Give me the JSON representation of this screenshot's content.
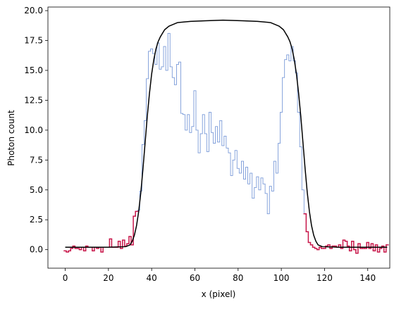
{
  "chart_data": {
    "type": "step",
    "xlabel": "x (pixel)",
    "ylabel": "Photon count",
    "xlim": [
      -8,
      150.2
    ],
    "ylim": [
      -1.55,
      20.3
    ],
    "xticks": [
      0,
      20,
      40,
      60,
      80,
      100,
      120,
      140
    ],
    "yticks": [
      {
        "value": 0,
        "label": "0.0"
      },
      2.5,
      {
        "value": 5,
        "label": "5.0"
      },
      7.5,
      {
        "value": 10,
        "label": "10.0"
      },
      12.5,
      {
        "value": 15,
        "label": "15.0"
      },
      17.5,
      {
        "value": 20,
        "label": "20.0"
      }
    ],
    "grid": false,
    "series": [
      {
        "kind": "step",
        "color": "#6b8fd4",
        "width": 0.8,
        "x": [
          31,
          32,
          33,
          34,
          35,
          36,
          37,
          38,
          39,
          40,
          41,
          42,
          43,
          44,
          45,
          46,
          47,
          48,
          49,
          50,
          51,
          52,
          53,
          54,
          55,
          56,
          57,
          58,
          59,
          60,
          61,
          62,
          63,
          64,
          65,
          66,
          67,
          68,
          69,
          70,
          71,
          72,
          73,
          74,
          75,
          76,
          77,
          78,
          79,
          80,
          81,
          82,
          83,
          84,
          85,
          86,
          87,
          88,
          89,
          90,
          91,
          92,
          93,
          94,
          95,
          96,
          97,
          98,
          99,
          100,
          101,
          102,
          103,
          104,
          105,
          106,
          107,
          108,
          109,
          110,
          111,
          112
        ],
        "values": [
          0.4,
          2.8,
          3.2,
          3.3,
          4.9,
          8.8,
          10.8,
          14.3,
          16.6,
          16.8,
          16.4,
          15.5,
          17.3,
          15.1,
          15.3,
          17.0,
          15.0,
          18.1,
          15.3,
          14.4,
          13.8,
          15.5,
          15.7,
          11.4,
          11.3,
          10.0,
          11.3,
          9.8,
          10.3,
          13.3,
          10.0,
          8.1,
          9.7,
          11.3,
          9.7,
          8.2,
          11.5,
          9.8,
          8.9,
          10.3,
          9.0,
          10.8,
          8.7,
          9.5,
          8.5,
          8.1,
          6.2,
          7.5,
          8.3,
          6.8,
          6.4,
          7.4,
          5.9,
          6.9,
          5.5,
          6.4,
          4.3,
          5.2,
          6.1,
          5.0,
          6.0,
          5.5,
          4.7,
          3.0,
          5.3,
          4.9,
          7.4,
          6.4,
          8.9,
          11.5,
          14.4,
          15.9,
          16.3,
          15.8,
          17.0,
          15.8,
          14.8,
          11.5,
          8.6,
          5.0,
          3.0,
          1.5
        ]
      },
      {
        "kind": "step",
        "color": "#c8174a",
        "width": 1.5,
        "x": [
          0,
          1,
          2,
          3,
          4,
          5,
          6,
          7,
          8,
          9,
          10,
          11,
          12,
          13,
          14,
          15,
          16,
          17,
          18,
          19,
          20,
          21,
          22,
          23,
          24,
          25,
          26,
          27,
          28,
          29,
          30,
          31,
          32,
          33,
          34,
          35,
          36,
          37,
          38,
          39,
          40,
          41,
          42,
          43,
          44,
          45,
          46,
          47,
          48,
          49,
          50,
          51,
          52,
          53,
          54,
          55,
          56,
          57,
          58,
          59,
          60,
          61,
          62,
          63,
          64,
          65,
          66,
          67,
          68,
          69,
          70,
          71,
          72,
          73,
          74,
          75,
          76,
          77,
          78,
          79,
          80,
          81,
          82,
          83,
          84,
          85,
          86,
          87,
          88,
          89,
          90,
          91,
          92,
          93,
          94,
          95,
          96,
          97,
          98,
          99,
          100,
          101,
          102,
          103,
          104,
          105,
          106,
          107,
          108,
          109,
          110,
          111,
          112,
          113,
          114,
          115,
          116,
          117,
          118,
          119,
          120,
          121,
          122,
          123,
          124,
          125,
          126,
          127,
          128,
          129,
          130,
          131,
          132,
          133,
          134,
          135,
          136,
          137,
          138,
          139,
          140,
          141,
          142,
          143,
          144,
          145,
          146,
          147,
          148,
          149
        ],
        "values": [
          -0.1,
          -0.2,
          -0.1,
          0.1,
          0.3,
          0.1,
          0.1,
          0,
          0.2,
          -0.1,
          0.3,
          0.2,
          0.2,
          -0.1,
          0.2,
          0.1,
          0.2,
          -0.2,
          0.2,
          0.2,
          0.2,
          0.9,
          0.2,
          0.2,
          0.2,
          0.7,
          0.1,
          0.8,
          0.3,
          0.5,
          1.1,
          0.4,
          2.8,
          3.2,
          null,
          null,
          null,
          null,
          null,
          null,
          null,
          null,
          null,
          null,
          null,
          null,
          null,
          null,
          null,
          null,
          null,
          null,
          null,
          null,
          null,
          null,
          null,
          null,
          null,
          null,
          null,
          null,
          null,
          null,
          null,
          null,
          null,
          null,
          null,
          null,
          null,
          null,
          null,
          null,
          null,
          null,
          null,
          null,
          null,
          null,
          null,
          null,
          null,
          null,
          null,
          null,
          null,
          null,
          null,
          null,
          null,
          null,
          null,
          null,
          null,
          null,
          null,
          null,
          null,
          null,
          null,
          null,
          null,
          null,
          null,
          null,
          null,
          null,
          null,
          null,
          null,
          3.0,
          1.5,
          0.6,
          0.4,
          0.2,
          0.1,
          0,
          0.2,
          0.1,
          0.1,
          0.3,
          0.4,
          0.1,
          0.3,
          0.3,
          0.2,
          0.4,
          0.1,
          0.8,
          0.7,
          0.3,
          -0.1,
          0.7,
          0,
          -0.3,
          0.5,
          0.1,
          0.1,
          0.1,
          0.6,
          0.1,
          0.5,
          -0.1,
          0.4,
          -0.2,
          0.1,
          0.3,
          -0.2,
          0.4
        ]
      },
      {
        "kind": "line",
        "color": "#000000",
        "width": 1.5,
        "x": [
          0,
          20,
          28,
          30,
          31,
          32,
          33,
          34,
          35,
          36,
          37,
          38,
          39,
          40,
          41,
          42,
          43,
          44,
          46,
          48,
          52,
          58,
          65,
          73,
          82,
          89,
          95,
          99,
          101,
          103,
          104,
          105,
          106,
          107,
          108,
          109,
          110,
          111,
          112,
          113,
          114,
          115,
          116,
          117,
          119,
          127,
          149
        ],
        "values": [
          0.2,
          0.2,
          0.25,
          0.4,
          0.7,
          1.2,
          2.0,
          3.2,
          4.8,
          6.8,
          9.0,
          11.2,
          13.1,
          14.7,
          15.9,
          16.8,
          17.4,
          17.8,
          18.4,
          18.7,
          19.0,
          19.1,
          19.15,
          19.2,
          19.15,
          19.1,
          19.0,
          18.7,
          18.4,
          17.8,
          17.4,
          16.8,
          15.9,
          14.7,
          13.1,
          11.2,
          9.0,
          6.8,
          4.8,
          3.2,
          2.0,
          1.2,
          0.7,
          0.4,
          0.25,
          0.2,
          0.2
        ]
      }
    ]
  }
}
